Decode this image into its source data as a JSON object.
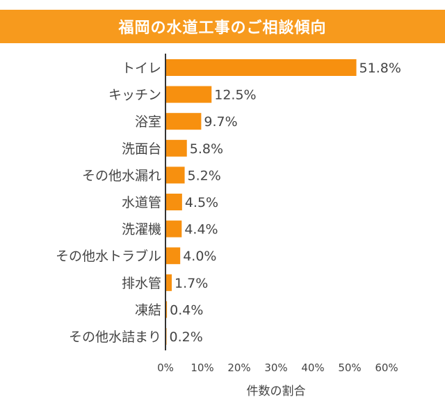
{
  "chart_data": {
    "type": "bar",
    "orientation": "horizontal",
    "title": "福岡の水道工事のご相談傾向",
    "xlabel": "件数の割合",
    "ylabel": "",
    "categories": [
      "トイレ",
      "キッチン",
      "浴室",
      "洗面台",
      "その他水漏れ",
      "水道管",
      "洗濯機",
      "その他水トラブル",
      "排水管",
      "凍結",
      "その他水詰まり"
    ],
    "values": [
      51.8,
      12.5,
      9.7,
      5.8,
      5.2,
      4.5,
      4.4,
      4.0,
      1.7,
      0.4,
      0.2
    ],
    "value_labels": [
      "51.8%",
      "12.5%",
      "9.7%",
      "5.8%",
      "5.2%",
      "4.5%",
      "4.4%",
      "4.0%",
      "1.7%",
      "0.4%",
      "0.2%"
    ],
    "xlim": [
      0,
      60
    ],
    "xticks": [
      "0%",
      "10%",
      "20%",
      "30%",
      "40%",
      "50%",
      "60%"
    ],
    "bar_color": "#f7900f",
    "grid": false
  }
}
